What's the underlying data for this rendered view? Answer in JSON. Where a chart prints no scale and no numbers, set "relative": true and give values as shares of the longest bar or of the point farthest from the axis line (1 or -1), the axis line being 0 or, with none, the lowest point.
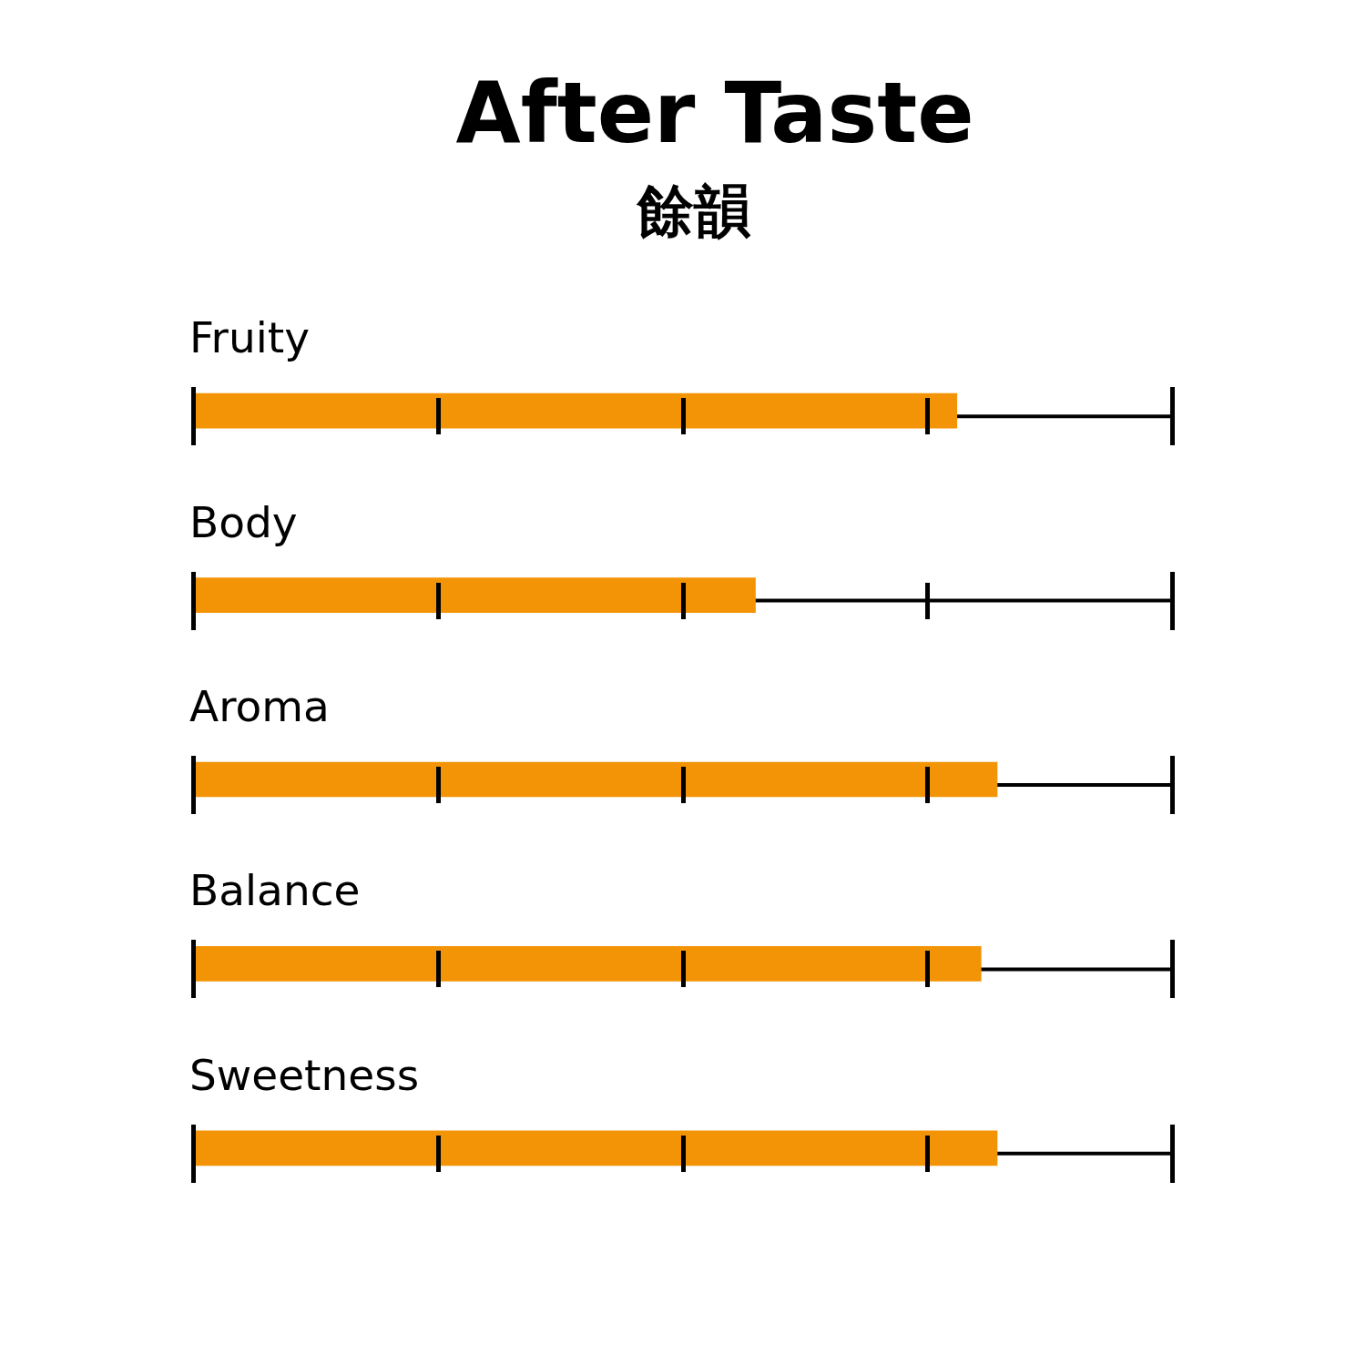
{
  "chart_data": {
    "type": "bar",
    "title": "After Taste",
    "subtitle": "餘韻",
    "categories": [
      "Fruity",
      "Body",
      "Aroma",
      "Balance",
      "Sweetness"
    ],
    "values": [
      0.95,
      0.7,
      1,
      0.98,
      1
    ],
    "color": "#f39406",
    "orientation": "horizontal",
    "relative": true
  }
}
